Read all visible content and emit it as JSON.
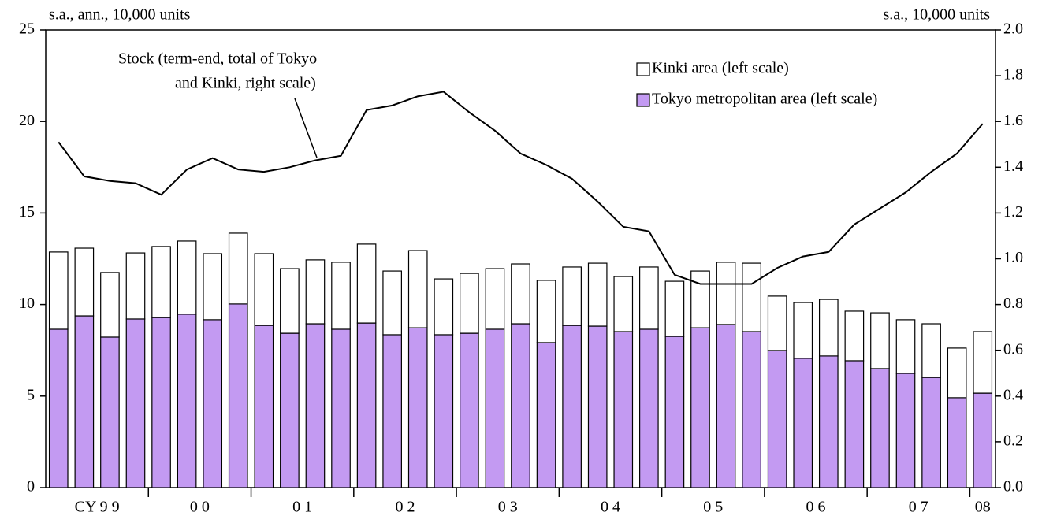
{
  "chart_data": {
    "type": "bar",
    "ylabel": "s.a., ann., 10,000 units",
    "y2label": "s.a., 10,000 units",
    "annotations": [
      "Stock (term-end, total of Tokyo",
      "and Kinki, right scale)"
    ],
    "categories": [
      "CY 9 9",
      null,
      null,
      null,
      "0 0",
      null,
      null,
      null,
      "0 1",
      null,
      null,
      null,
      "0 2",
      null,
      null,
      null,
      "0 3",
      null,
      null,
      null,
      "0 4",
      null,
      null,
      null,
      "0 5",
      null,
      null,
      null,
      "0 6",
      null,
      null,
      null,
      "0 7",
      null,
      null,
      null,
      "08"
    ],
    "stacked": true,
    "legend": "upper right",
    "series": [
      {
        "name": "Tokyo metropolitan area (left scale)",
        "color": "#c39af2",
        "values": [
          8.65,
          9.38,
          8.22,
          9.21,
          9.29,
          9.47,
          9.17,
          10.03,
          8.86,
          8.43,
          8.95,
          8.65,
          8.99,
          8.35,
          8.73,
          8.35,
          8.43,
          8.65,
          8.95,
          7.92,
          8.86,
          8.82,
          8.52,
          8.65,
          8.26,
          8.73,
          8.91,
          8.52,
          7.49,
          7.06,
          7.19,
          6.93,
          6.5,
          6.24,
          6.02,
          4.91,
          5.16
        ]
      },
      {
        "name": "Kinki area (left scale)",
        "color": "#ffffff",
        "values": [
          4.22,
          3.7,
          3.53,
          3.61,
          3.88,
          4.0,
          3.61,
          3.87,
          3.92,
          3.53,
          3.49,
          3.66,
          4.31,
          3.48,
          4.22,
          3.05,
          3.27,
          3.31,
          3.27,
          3.4,
          3.19,
          3.44,
          3.01,
          3.4,
          3.01,
          3.1,
          3.4,
          3.74,
          2.97,
          3.05,
          3.09,
          2.71,
          3.05,
          2.93,
          2.93,
          2.71,
          3.36
        ]
      },
      {
        "type": "line",
        "axis": "y2",
        "color": "#000000",
        "values": [
          1.51,
          1.36,
          1.34,
          1.33,
          1.28,
          1.39,
          1.44,
          1.39,
          1.38,
          1.4,
          1.43,
          1.45,
          1.65,
          1.67,
          1.71,
          1.73,
          1.64,
          1.56,
          1.46,
          1.41,
          1.35,
          1.25,
          1.14,
          1.12,
          0.93,
          0.89,
          0.89,
          0.89,
          0.96,
          1.01,
          1.03,
          1.15,
          1.22,
          1.29,
          1.38,
          1.46,
          1.59
        ]
      }
    ],
    "ylim": [
      0,
      25
    ],
    "yticks": [
      0,
      5,
      10,
      15,
      20,
      25
    ],
    "y2lim": [
      0,
      2
    ],
    "y2ticks": [
      {
        "value": 0,
        "label": "0.0"
      },
      0.2,
      0.4,
      0.6,
      0.8,
      {
        "value": 1,
        "label": "1.0"
      },
      1.2,
      1.4,
      1.6,
      1.8,
      {
        "value": 2,
        "label": "2.0"
      }
    ],
    "grid": false
  }
}
